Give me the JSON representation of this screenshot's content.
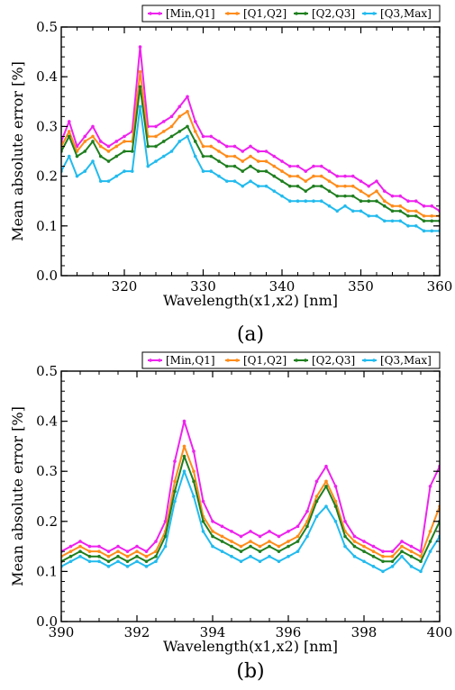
{
  "chart_data": [
    {
      "type": "line",
      "panel_label": "(a)",
      "xlabel": "Wavelength(x1,x2) [nm]",
      "ylabel": "Mean absolute error [%]",
      "xlim": [
        312,
        360
      ],
      "ylim": [
        0,
        0.5
      ],
      "xticks": [
        320,
        330,
        340,
        350,
        360
      ],
      "yticks": [
        0.0,
        0.1,
        0.2,
        0.3,
        0.4,
        0.5
      ],
      "legend_position": "top-right",
      "grid": false,
      "x": [
        312,
        313,
        314,
        315,
        316,
        317,
        318,
        319,
        320,
        321,
        322,
        323,
        324,
        325,
        326,
        327,
        328,
        329,
        330,
        331,
        332,
        333,
        334,
        335,
        336,
        337,
        338,
        339,
        340,
        341,
        342,
        343,
        344,
        345,
        346,
        347,
        348,
        349,
        350,
        351,
        352,
        353,
        354,
        355,
        356,
        357,
        358,
        359,
        360
      ],
      "series": [
        {
          "name": "[Min,Q1]",
          "color": "#ee22ee",
          "values": [
            0.27,
            0.31,
            0.26,
            0.28,
            0.3,
            0.27,
            0.26,
            0.27,
            0.28,
            0.29,
            0.46,
            0.3,
            0.3,
            0.31,
            0.32,
            0.34,
            0.36,
            0.31,
            0.28,
            0.28,
            0.27,
            0.26,
            0.26,
            0.25,
            0.26,
            0.25,
            0.25,
            0.24,
            0.23,
            0.22,
            0.22,
            0.21,
            0.22,
            0.22,
            0.21,
            0.2,
            0.2,
            0.2,
            0.19,
            0.18,
            0.19,
            0.17,
            0.16,
            0.16,
            0.15,
            0.15,
            0.14,
            0.14,
            0.13
          ]
        },
        {
          "name": "[Q1,Q2]",
          "color": "#ff8c1a",
          "values": [
            0.26,
            0.29,
            0.25,
            0.27,
            0.28,
            0.26,
            0.25,
            0.26,
            0.27,
            0.27,
            0.41,
            0.28,
            0.28,
            0.29,
            0.3,
            0.32,
            0.33,
            0.29,
            0.26,
            0.26,
            0.25,
            0.24,
            0.24,
            0.23,
            0.24,
            0.23,
            0.23,
            0.22,
            0.21,
            0.2,
            0.2,
            0.19,
            0.2,
            0.2,
            0.19,
            0.18,
            0.18,
            0.18,
            0.17,
            0.16,
            0.17,
            0.15,
            0.14,
            0.14,
            0.13,
            0.13,
            0.12,
            0.12,
            0.12
          ]
        },
        {
          "name": "[Q2,Q3]",
          "color": "#1f7f1f",
          "values": [
            0.25,
            0.28,
            0.24,
            0.25,
            0.27,
            0.24,
            0.23,
            0.24,
            0.25,
            0.25,
            0.38,
            0.26,
            0.26,
            0.27,
            0.28,
            0.29,
            0.3,
            0.27,
            0.24,
            0.24,
            0.23,
            0.22,
            0.22,
            0.21,
            0.22,
            0.21,
            0.21,
            0.2,
            0.19,
            0.18,
            0.18,
            0.17,
            0.18,
            0.18,
            0.17,
            0.16,
            0.16,
            0.16,
            0.15,
            0.15,
            0.15,
            0.14,
            0.13,
            0.13,
            0.12,
            0.12,
            0.11,
            0.11,
            0.11
          ]
        },
        {
          "name": "[Q3,Max]",
          "color": "#22bbee",
          "values": [
            0.21,
            0.24,
            0.2,
            0.21,
            0.23,
            0.19,
            0.19,
            0.2,
            0.21,
            0.21,
            0.34,
            0.22,
            0.23,
            0.24,
            0.25,
            0.27,
            0.28,
            0.24,
            0.21,
            0.21,
            0.2,
            0.19,
            0.19,
            0.18,
            0.19,
            0.18,
            0.18,
            0.17,
            0.16,
            0.15,
            0.15,
            0.15,
            0.15,
            0.15,
            0.14,
            0.13,
            0.14,
            0.13,
            0.13,
            0.12,
            0.12,
            0.11,
            0.11,
            0.11,
            0.1,
            0.1,
            0.09,
            0.09,
            0.09
          ]
        }
      ]
    },
    {
      "type": "line",
      "panel_label": "(b)",
      "xlabel": "Wavelength(x1,x2) [nm]",
      "ylabel": "Mean absolute error [%]",
      "xlim": [
        390,
        400
      ],
      "ylim": [
        0,
        0.5
      ],
      "xticks": [
        390,
        392,
        394,
        396,
        398,
        400
      ],
      "yticks": [
        0.0,
        0.1,
        0.2,
        0.3,
        0.4,
        0.5
      ],
      "legend_position": "top-right",
      "grid": false,
      "x": [
        390.0,
        390.25,
        390.5,
        390.75,
        391.0,
        391.25,
        391.5,
        391.75,
        392.0,
        392.25,
        392.5,
        392.75,
        393.0,
        393.25,
        393.5,
        393.75,
        394.0,
        394.25,
        394.5,
        394.75,
        395.0,
        395.25,
        395.5,
        395.75,
        396.0,
        396.25,
        396.5,
        396.75,
        397.0,
        397.25,
        397.5,
        397.75,
        398.0,
        398.25,
        398.5,
        398.75,
        399.0,
        399.25,
        399.5,
        399.75,
        400.0
      ],
      "series": [
        {
          "name": "[Min,Q1]",
          "color": "#ee22ee",
          "values": [
            0.14,
            0.15,
            0.16,
            0.15,
            0.15,
            0.14,
            0.15,
            0.14,
            0.15,
            0.14,
            0.16,
            0.2,
            0.32,
            0.4,
            0.34,
            0.24,
            0.2,
            0.19,
            0.18,
            0.17,
            0.18,
            0.17,
            0.18,
            0.17,
            0.18,
            0.19,
            0.22,
            0.28,
            0.31,
            0.27,
            0.2,
            0.17,
            0.16,
            0.15,
            0.14,
            0.14,
            0.16,
            0.15,
            0.14,
            0.27,
            0.31
          ]
        },
        {
          "name": "[Q1,Q2]",
          "color": "#ff8c1a",
          "values": [
            0.13,
            0.14,
            0.15,
            0.14,
            0.14,
            0.13,
            0.14,
            0.13,
            0.14,
            0.13,
            0.14,
            0.18,
            0.28,
            0.35,
            0.3,
            0.21,
            0.18,
            0.17,
            0.16,
            0.15,
            0.16,
            0.15,
            0.16,
            0.15,
            0.16,
            0.17,
            0.2,
            0.25,
            0.28,
            0.24,
            0.18,
            0.16,
            0.15,
            0.14,
            0.13,
            0.13,
            0.15,
            0.14,
            0.13,
            0.18,
            0.23
          ]
        },
        {
          "name": "[Q2,Q3]",
          "color": "#1f7f1f",
          "values": [
            0.12,
            0.13,
            0.14,
            0.13,
            0.13,
            0.12,
            0.13,
            0.12,
            0.13,
            0.12,
            0.13,
            0.17,
            0.26,
            0.33,
            0.28,
            0.2,
            0.17,
            0.16,
            0.15,
            0.14,
            0.15,
            0.14,
            0.15,
            0.14,
            0.15,
            0.16,
            0.19,
            0.24,
            0.27,
            0.23,
            0.17,
            0.15,
            0.14,
            0.13,
            0.12,
            0.12,
            0.14,
            0.13,
            0.12,
            0.16,
            0.2
          ]
        },
        {
          "name": "[Q3,Max]",
          "color": "#22bbee",
          "values": [
            0.11,
            0.12,
            0.13,
            0.12,
            0.12,
            0.11,
            0.12,
            0.11,
            0.12,
            0.11,
            0.12,
            0.15,
            0.24,
            0.3,
            0.25,
            0.18,
            0.15,
            0.14,
            0.13,
            0.12,
            0.13,
            0.12,
            0.13,
            0.12,
            0.13,
            0.14,
            0.17,
            0.21,
            0.23,
            0.2,
            0.15,
            0.13,
            0.12,
            0.11,
            0.1,
            0.11,
            0.13,
            0.11,
            0.1,
            0.14,
            0.17
          ]
        }
      ]
    }
  ]
}
